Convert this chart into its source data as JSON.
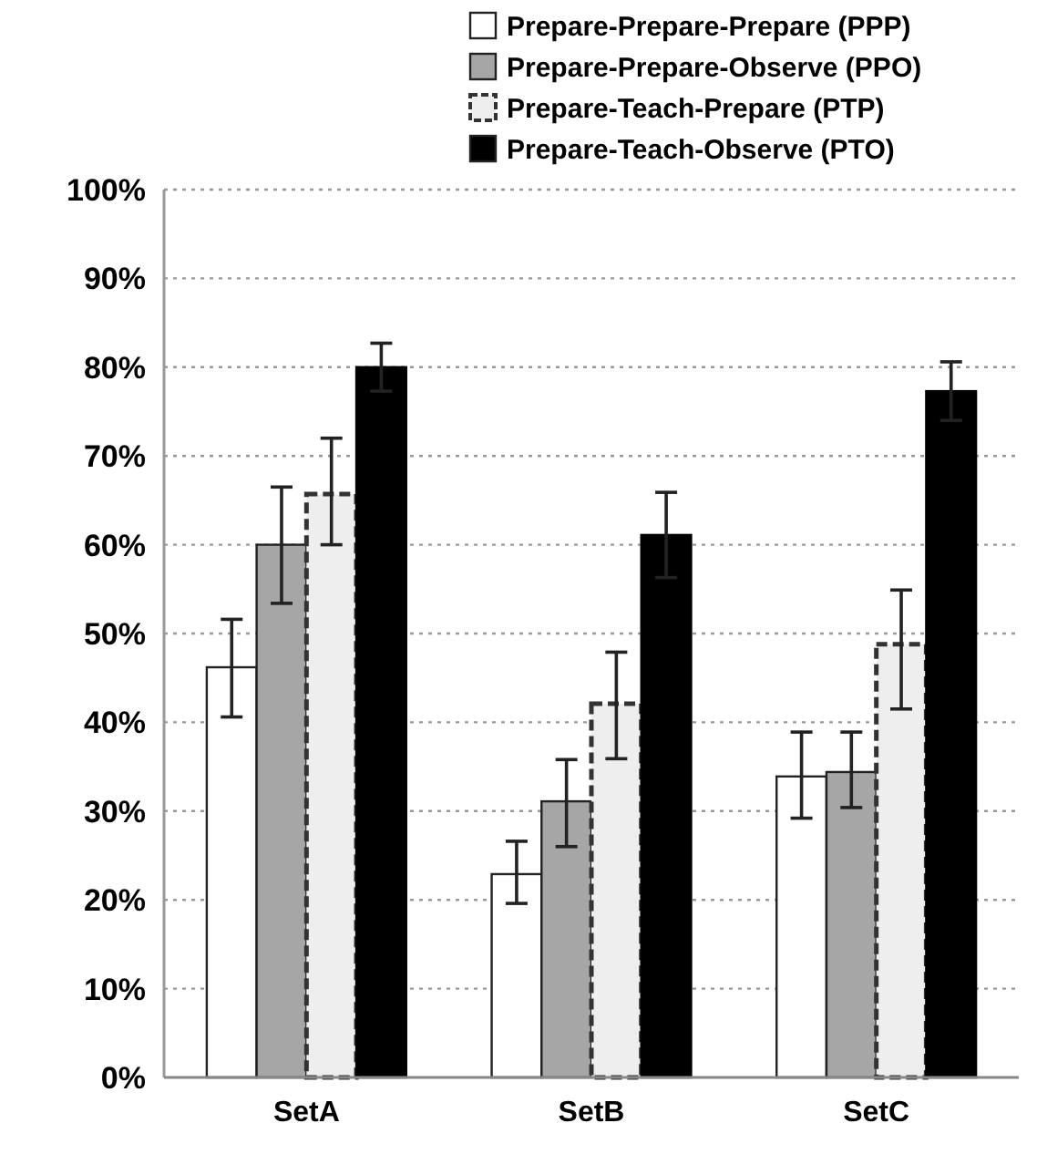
{
  "chart_data": {
    "type": "bar",
    "categories": [
      "SetA",
      "SetB",
      "SetC"
    ],
    "series": [
      {
        "name": "Prepare-Prepare-Prepare (PPP)",
        "color": "#ffffff",
        "values": [
          46.2,
          22.9,
          33.9
        ],
        "errors": [
          [
            40.6,
            51.6
          ],
          [
            19.6,
            26.6
          ],
          [
            29.2,
            38.9
          ]
        ]
      },
      {
        "name": "Prepare-Prepare-Observe (PPO)",
        "color": "#a6a6a6",
        "values": [
          60,
          31.1,
          34.4
        ],
        "errors": [
          [
            53.4,
            66.5
          ],
          [
            26,
            35.8
          ],
          [
            30.4,
            38.9
          ]
        ]
      },
      {
        "name": "Prepare-Teach-Prepare (PTP)",
        "color": "#eeeeee",
        "line_style": "dashed",
        "values": [
          65.7,
          42.1,
          48.8
        ],
        "errors": [
          [
            60,
            72
          ],
          [
            35.9,
            47.9
          ],
          [
            41.5,
            54.9
          ]
        ]
      },
      {
        "name": "Prepare-Teach-Observe (PTO)",
        "color": "#000000",
        "values": [
          80,
          61.1,
          77.3
        ],
        "errors": [
          2.7,
          4.8,
          3.3
        ]
      }
    ],
    "ylim": [
      0,
      100
    ],
    "yticks": [
      {
        "value": 0,
        "label": "0%"
      },
      {
        "value": 10,
        "label": "10%"
      },
      {
        "value": 20,
        "label": "20%"
      },
      {
        "value": 30,
        "label": "30%"
      },
      {
        "value": 40,
        "label": "40%"
      },
      {
        "value": 50,
        "label": "50%"
      },
      {
        "value": 60,
        "label": "60%"
      },
      {
        "value": 70,
        "label": "70%"
      },
      {
        "value": 80,
        "label": "80%"
      },
      {
        "value": 90,
        "label": "90%"
      },
      {
        "value": 100,
        "label": "100%"
      }
    ],
    "grid": "y",
    "legend": "top right"
  }
}
